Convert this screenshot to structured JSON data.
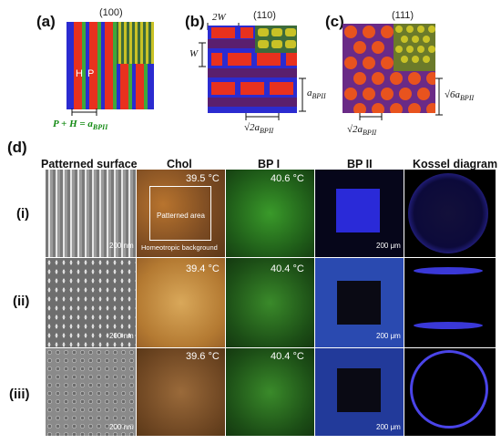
{
  "top": {
    "a": {
      "label": "(a)",
      "miller": "(100)",
      "h": "H",
      "p": "P",
      "eq": "P + H = a",
      "eq_sub": "BPII"
    },
    "b": {
      "label": "(b)",
      "miller": "(110)",
      "two_w": "2W",
      "w": "W",
      "a": "a",
      "a_sub": "BPII",
      "sqrt2": "√2a",
      "sqrt2_sub": "BPII"
    },
    "c": {
      "label": "(c)",
      "miller": "(111)",
      "sqrt6": "√6a",
      "sqrt6_sub": "BPII",
      "sqrt2": "√2a",
      "sqrt2_sub": "BPII"
    }
  },
  "d": {
    "label": "(d)",
    "headers": [
      "Patterned surface",
      "Chol",
      "BP I",
      "BP II",
      "Kossel diagram"
    ],
    "rows": [
      {
        "label": "(i)",
        "chol_temp": "39.5 °C",
        "bp1_temp": "40.6 °C"
      },
      {
        "label": "(ii)",
        "chol_temp": "39.4 °C",
        "bp1_temp": "40.4 °C"
      },
      {
        "label": "(iii)",
        "chol_temp": "39.6 °C",
        "bp1_temp": "40.4 °C"
      }
    ],
    "scale_nm": "200 nm",
    "scale_um": "200 μm",
    "patterned_area": "Patterned area",
    "homeotropic": "Homeotropic background"
  }
}
